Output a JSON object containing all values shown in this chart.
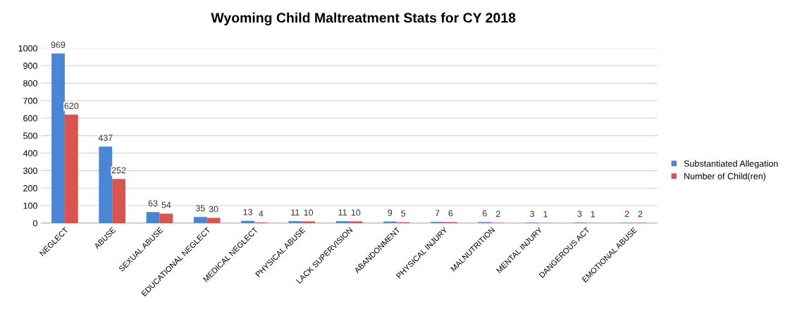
{
  "chart_data": {
    "type": "bar",
    "title": "Wyoming Child Maltreatment Stats for CY 2018",
    "categories": [
      "NEGLECT",
      "ABUSE",
      "SEXUAL ABUSE",
      "EDUCATIONAL NEGLECT",
      "MEDICAL NEGLECT",
      "PHYSICAL ABUSE",
      "LACK SUPERVISION",
      "ABANDONMENT",
      "PHYSICAL INJURY",
      "MALNUTRITION",
      "MENTAL INJURY",
      "DANGEROUS ACT",
      "EMOTIONAL ABUSE"
    ],
    "series": [
      {
        "name": "Substantiated Allegation",
        "color": "#4a86d4",
        "values": [
          969,
          437,
          63,
          35,
          13,
          11,
          11,
          9,
          7,
          6,
          3,
          3,
          2
        ]
      },
      {
        "name": "Number of Child(ren)",
        "color": "#d9534f",
        "values": [
          620,
          252,
          54,
          30,
          4,
          10,
          10,
          5,
          6,
          2,
          1,
          1,
          2
        ]
      }
    ],
    "ylim": [
      0,
      1000
    ],
    "yticks": [
      0,
      100,
      200,
      300,
      400,
      500,
      600,
      700,
      800,
      900,
      1000
    ],
    "grid": "y",
    "legend": "right",
    "data_labels": true
  }
}
